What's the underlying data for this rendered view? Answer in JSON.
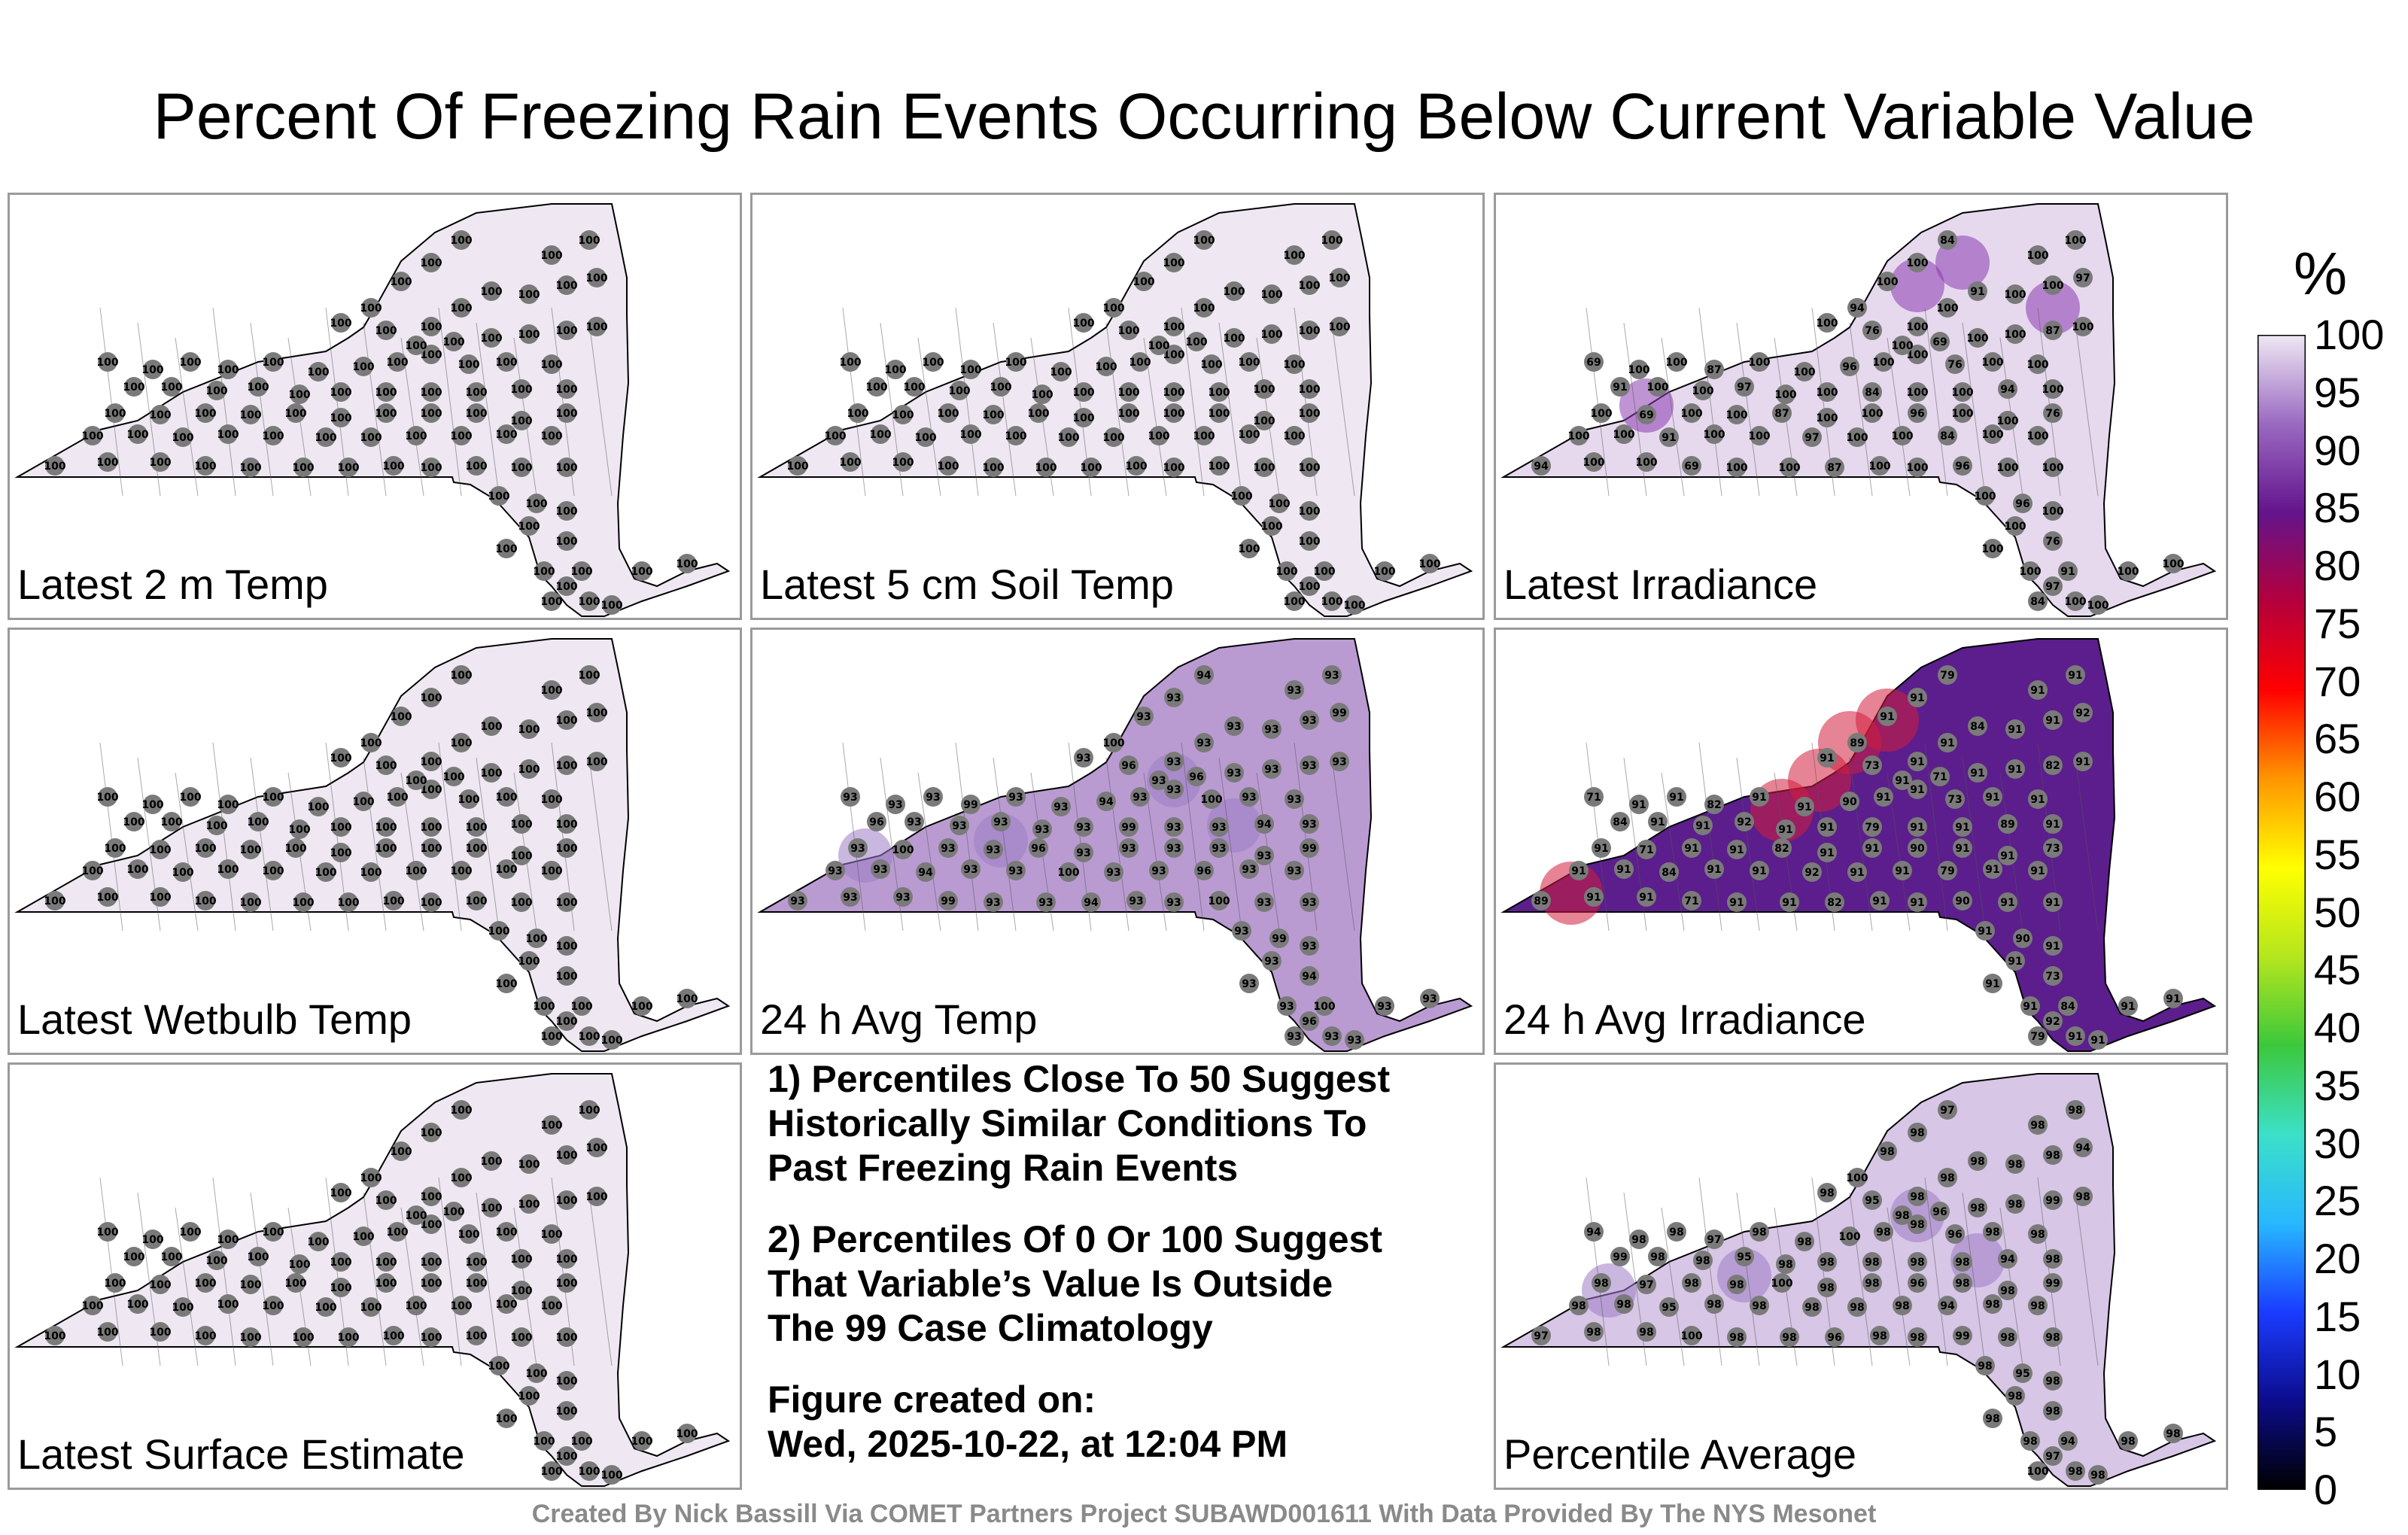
{
  "title": "Percent Of Freezing Rain Events Occurring Below Current Variable Value",
  "panels": [
    {
      "label": "Latest 2 m Temp",
      "value": "100"
    },
    {
      "label": "Latest 5 cm Soil Temp",
      "value": "100"
    },
    {
      "label": "Latest Irradiance",
      "value": "100",
      "lows": [
        "69",
        "76",
        "84",
        "87",
        "91",
        "94",
        "96",
        "97"
      ]
    },
    {
      "label": "Latest Wetbulb Temp",
      "value": "100"
    },
    {
      "label": "24 h Avg Temp",
      "value": "93",
      "lows": [
        "93",
        "94",
        "96",
        "99",
        "100"
      ]
    },
    {
      "label": "24 h Avg Irradiance",
      "value": "91",
      "lows": [
        "71",
        "73",
        "79",
        "82",
        "84",
        "89",
        "90",
        "92"
      ]
    },
    {
      "label": "Latest Surface Estimate",
      "value": "100"
    },
    {
      "label": "Percentile Average",
      "value": "98",
      "lows": [
        "94",
        "95",
        "96",
        "97",
        "98",
        "99",
        "100"
      ]
    }
  ],
  "notes": {
    "note1": [
      "1) Percentiles Close To 50 Suggest",
      "Historically Similar Conditions To",
      "Past Freezing Rain Events"
    ],
    "note2": [
      "2) Percentiles Of 0 Or 100 Suggest",
      "That Variable’s Value Is Outside",
      "The 99 Case Climatology"
    ],
    "created_label": "Figure created on:",
    "created_date": "Wed, 2025-10-22, at 12:04 PM"
  },
  "colorbar": {
    "unit": "%",
    "ticks": [
      "100",
      "95",
      "90",
      "85",
      "80",
      "75",
      "70",
      "65",
      "60",
      "55",
      "50",
      "45",
      "40",
      "35",
      "30",
      "25",
      "20",
      "15",
      "10",
      "5",
      "0"
    ],
    "stops": [
      "#000000",
      "#0c0c8c",
      "#1a3cff",
      "#28b8ff",
      "#3ce0c8",
      "#3cc83c",
      "#b4e61e",
      "#ffff00",
      "#ff9600",
      "#ff0000",
      "#b4003c",
      "#64148c",
      "#9a6ac2",
      "#efe8f3"
    ]
  },
  "footer": "Created By Nick Bassill Via COMET Partners Project SUBAWD001611 With Data Provided By The NYS Mesonet"
}
